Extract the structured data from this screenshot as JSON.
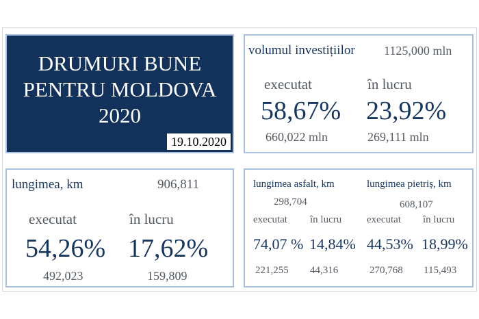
{
  "title": {
    "line1": "DRUMURI BUNE",
    "line2": "PENTRU MOLDOVA",
    "line3": "2020",
    "date": "19.10.2020"
  },
  "investitii": {
    "label": "volumul investițiilor",
    "total": "1125,000 mln",
    "executat_label": "executat",
    "executat_pct": "58,67%",
    "executat_val": "660,022 mln",
    "lucru_label": "în lucru",
    "lucru_pct": "23,92%",
    "lucru_val": "269,111 mln"
  },
  "lungimea": {
    "label": "lungimea, km",
    "total": "906,811",
    "executat_label": "executat",
    "executat_pct": "54,26%",
    "executat_val": "492,023",
    "lucru_label": "în lucru",
    "lucru_pct": "17,62%",
    "lucru_val": "159,809"
  },
  "asfalt": {
    "label": "lungimea asfalt, km",
    "total": "298,704",
    "executat_label": "executat",
    "executat_pct": "74,07 %",
    "executat_val": "221,255",
    "lucru_label": "în lucru",
    "lucru_pct": "14,84%",
    "lucru_val": "44,316"
  },
  "pietris": {
    "label": "lungimea pietriș, km",
    "total": "608,107",
    "executat_label": "executat",
    "executat_pct": "44,53%",
    "executat_val": "270,768",
    "lucru_label": "în lucru",
    "lucru_pct": "18,99%",
    "lucru_val": "115,493"
  }
}
